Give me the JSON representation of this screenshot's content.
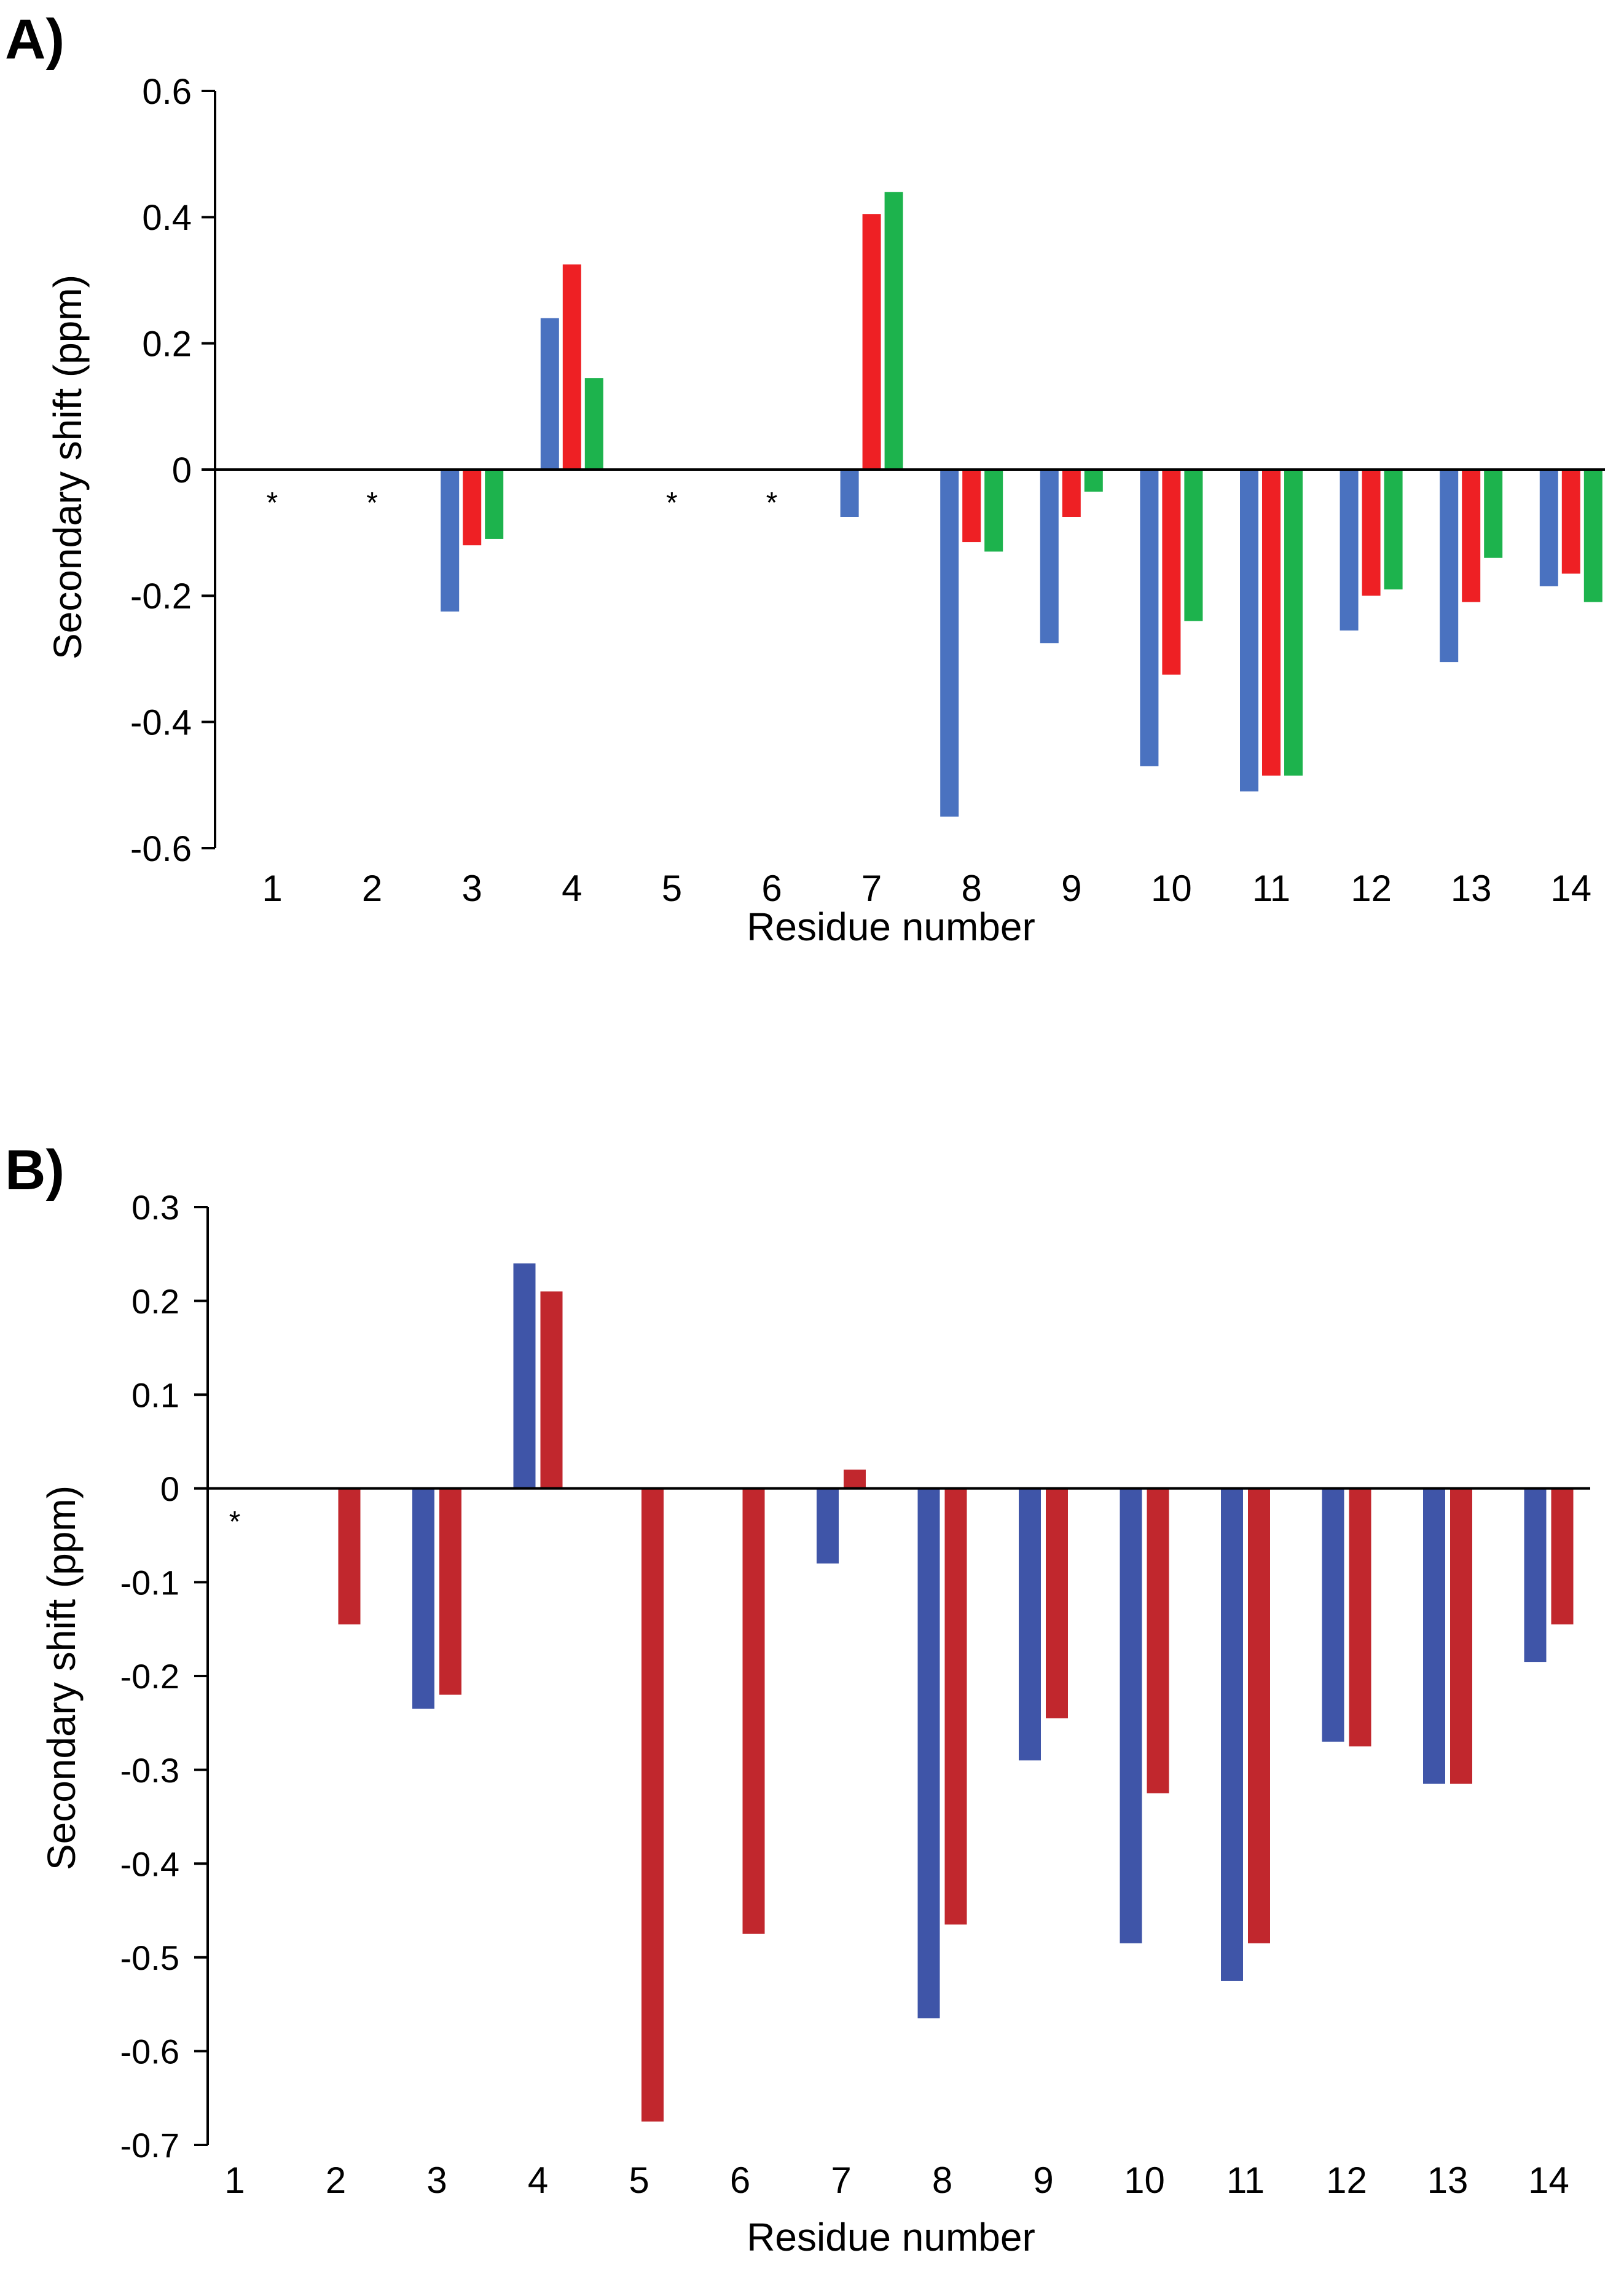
{
  "chart_data": [
    {
      "panel_label": "A)",
      "type": "bar",
      "title": "",
      "xlabel": "Residue number",
      "ylabel": "Secondary shift (ppm)",
      "ylim": [
        -0.6,
        0.6
      ],
      "yticks": [
        "0.6",
        "0.4",
        "0.2",
        "0",
        "-0.2",
        "-0.4",
        "-0.6"
      ],
      "ytick_values": [
        0.6,
        0.4,
        0.2,
        0,
        -0.2,
        -0.4,
        -0.6
      ],
      "categories": [
        "1",
        "2",
        "3",
        "4",
        "5",
        "6",
        "7",
        "8",
        "9",
        "10",
        "11",
        "12",
        "13",
        "14"
      ],
      "missing_marker": "*",
      "missing": [
        1,
        2,
        5,
        6
      ],
      "grid": false,
      "series": [
        {
          "color": "#4a72c0",
          "values": [
            null,
            null,
            -0.225,
            0.24,
            null,
            null,
            -0.075,
            -0.55,
            -0.275,
            -0.47,
            -0.51,
            -0.255,
            -0.305,
            -0.185
          ]
        },
        {
          "color": "#ee2024",
          "values": [
            null,
            null,
            -0.12,
            0.325,
            null,
            null,
            0.405,
            -0.115,
            -0.075,
            -0.325,
            -0.485,
            -0.2,
            -0.21,
            -0.165
          ]
        },
        {
          "color": "#1db34d",
          "values": [
            null,
            null,
            -0.11,
            0.145,
            null,
            null,
            0.44,
            -0.13,
            -0.035,
            -0.24,
            -0.485,
            -0.19,
            -0.14,
            -0.21
          ]
        }
      ]
    },
    {
      "panel_label": "B)",
      "type": "bar",
      "title": "",
      "xlabel": "Residue number",
      "ylabel": "Secondary shift (ppm)",
      "ylim": [
        -0.7,
        0.3
      ],
      "yticks": [
        "0.3",
        "0.2",
        "0.1",
        "0",
        "-0.1",
        "-0.2",
        "-0.3",
        "-0.4",
        "-0.5",
        "-0.6",
        "-0.7"
      ],
      "ytick_values": [
        0.3,
        0.2,
        0.1,
        0,
        -0.1,
        -0.2,
        -0.3,
        -0.4,
        -0.5,
        -0.6,
        -0.7
      ],
      "categories": [
        "1",
        "2",
        "3",
        "4",
        "5",
        "6",
        "7",
        "8",
        "9",
        "10",
        "11",
        "12",
        "13",
        "14"
      ],
      "missing_marker": "*",
      "missing": [
        1
      ],
      "grid": false,
      "series": [
        {
          "color": "#3f55a8",
          "values": [
            null,
            null,
            -0.235,
            0.24,
            null,
            null,
            -0.08,
            -0.565,
            -0.29,
            -0.485,
            -0.525,
            -0.27,
            -0.315,
            -0.185
          ]
        },
        {
          "color": "#c1272d",
          "values": [
            null,
            -0.145,
            -0.22,
            0.21,
            -0.675,
            -0.475,
            0.02,
            -0.465,
            -0.245,
            -0.325,
            -0.485,
            -0.275,
            -0.315,
            -0.145
          ]
        }
      ]
    }
  ]
}
